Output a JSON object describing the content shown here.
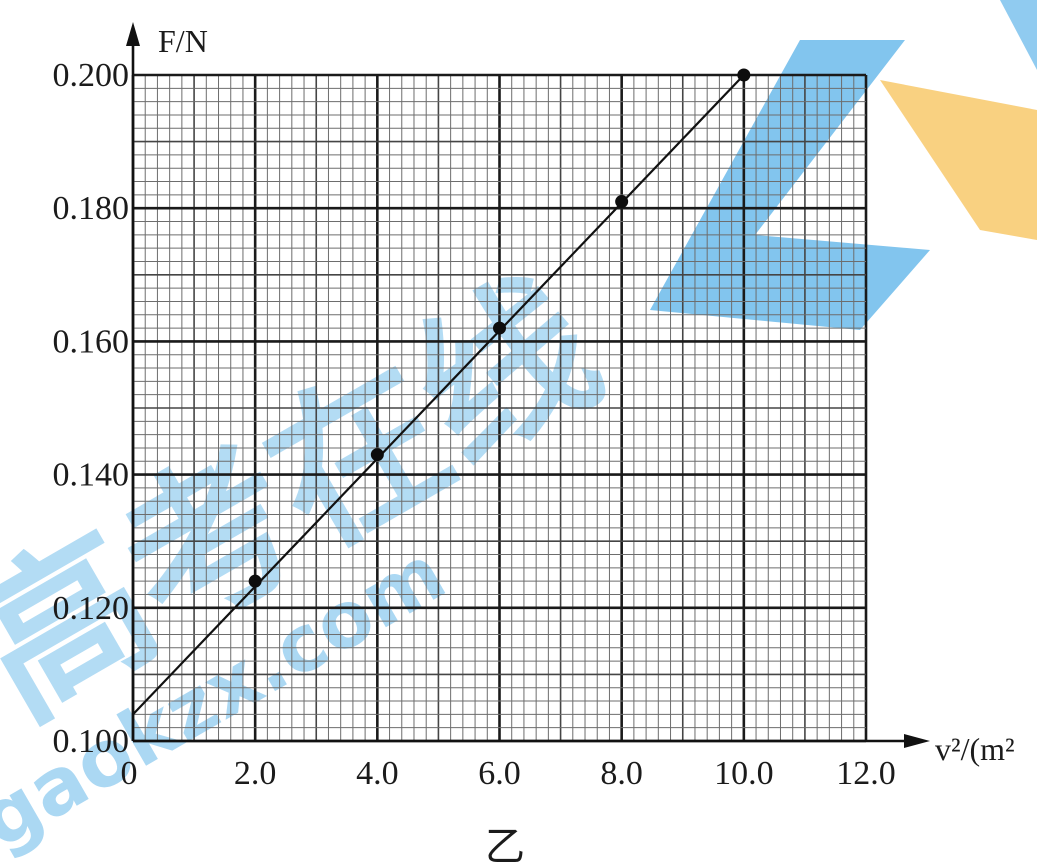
{
  "chart_data": {
    "type": "scatter",
    "x": [
      2.0,
      4.0,
      6.0,
      8.0,
      10.0
    ],
    "y": [
      0.124,
      0.143,
      0.162,
      0.181,
      0.2
    ],
    "fit_line": {
      "x": [
        0,
        10.0
      ],
      "y": [
        0.104,
        0.2
      ]
    },
    "xlim": [
      0,
      12.0
    ],
    "ylim": [
      0.1,
      0.2
    ],
    "x_major_step": 2.0,
    "y_major_step": 0.02,
    "x_tick_labels": [
      "0",
      "2.0",
      "4.0",
      "6.0",
      "8.0",
      "10.0",
      "12.0"
    ],
    "y_tick_labels": [
      "0.100",
      "0.120",
      "0.140",
      "0.160",
      "0.180",
      "0.200"
    ],
    "xlabel": "v²/(m²",
    "ylabel": "F/N",
    "grid": true,
    "legend": "none"
  },
  "caption": "乙",
  "colors": {
    "ink": "#111111",
    "grid": "#6d6d6d",
    "watermark_blue": "#5bb2e8",
    "watermark_orange": "#f6c25a"
  },
  "watermark": {
    "text_cn": "高考在线",
    "text_url": "gaokzx.com"
  }
}
